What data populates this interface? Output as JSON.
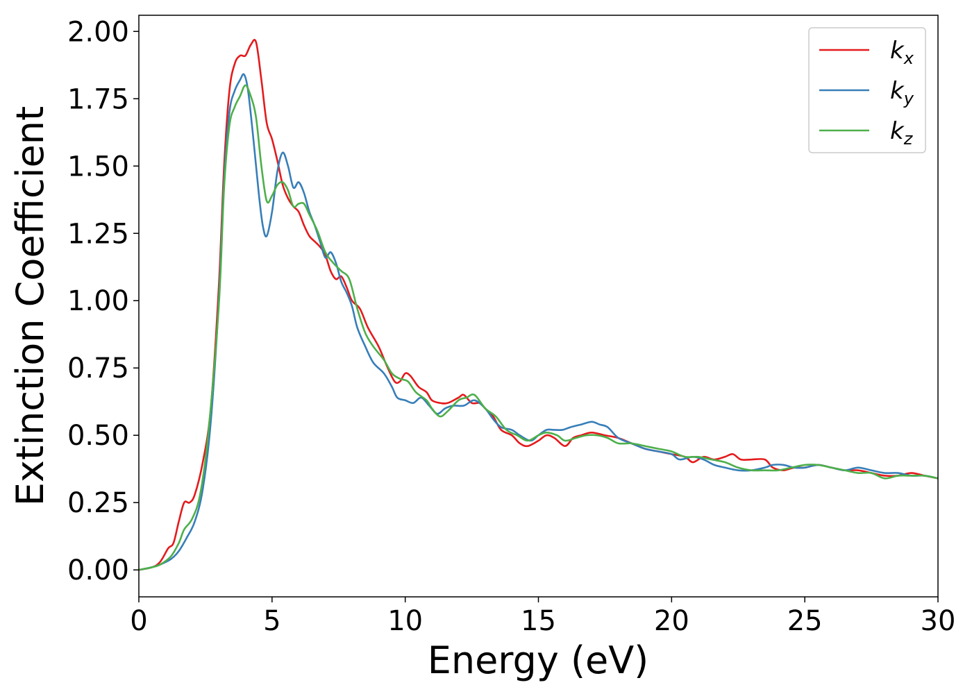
{
  "chart_data": {
    "type": "line",
    "title": "",
    "xlabel": "Energy (eV)",
    "ylabel": "Extinction Coefficient",
    "xlim": [
      0,
      30
    ],
    "ylim": [
      -0.1,
      2.06
    ],
    "x_ticks": [
      0,
      5,
      10,
      15,
      20,
      25,
      30
    ],
    "x_tick_labels": [
      "0",
      "5",
      "10",
      "15",
      "20",
      "25",
      "30"
    ],
    "y_ticks": [
      0,
      0.25,
      0.5,
      0.75,
      1.0,
      1.25,
      1.5,
      1.75,
      2.0
    ],
    "y_tick_labels": [
      "0.00",
      "0.25",
      "0.50",
      "0.75",
      "1.00",
      "1.25",
      "1.50",
      "1.75",
      "2.00"
    ],
    "grid": false,
    "legend_position": "top-right",
    "series": [
      {
        "name": "k",
        "subscript": "x",
        "color": "#e41a1c",
        "points": [
          [
            0,
            0
          ],
          [
            0.5,
            0.01
          ],
          [
            0.8,
            0.03
          ],
          [
            1.1,
            0.08
          ],
          [
            1.3,
            0.1
          ],
          [
            1.5,
            0.18
          ],
          [
            1.7,
            0.25
          ],
          [
            1.9,
            0.25
          ],
          [
            2.1,
            0.28
          ],
          [
            2.4,
            0.4
          ],
          [
            2.7,
            0.6
          ],
          [
            3.0,
            1.05
          ],
          [
            3.2,
            1.5
          ],
          [
            3.4,
            1.78
          ],
          [
            3.6,
            1.88
          ],
          [
            3.8,
            1.91
          ],
          [
            4.0,
            1.91
          ],
          [
            4.2,
            1.95
          ],
          [
            4.4,
            1.96
          ],
          [
            4.6,
            1.82
          ],
          [
            4.8,
            1.66
          ],
          [
            5.0,
            1.6
          ],
          [
            5.2,
            1.52
          ],
          [
            5.4,
            1.43
          ],
          [
            5.6,
            1.38
          ],
          [
            5.8,
            1.35
          ],
          [
            6.0,
            1.33
          ],
          [
            6.2,
            1.28
          ],
          [
            6.4,
            1.24
          ],
          [
            6.6,
            1.22
          ],
          [
            6.8,
            1.2
          ],
          [
            7.0,
            1.17
          ],
          [
            7.2,
            1.11
          ],
          [
            7.4,
            1.08
          ],
          [
            7.6,
            1.09
          ],
          [
            7.8,
            1.05
          ],
          [
            8.0,
            1.0
          ],
          [
            8.3,
            0.97
          ],
          [
            8.6,
            0.9
          ],
          [
            9.0,
            0.83
          ],
          [
            9.3,
            0.76
          ],
          [
            9.6,
            0.7
          ],
          [
            9.8,
            0.7
          ],
          [
            10.0,
            0.73
          ],
          [
            10.2,
            0.72
          ],
          [
            10.5,
            0.68
          ],
          [
            10.8,
            0.66
          ],
          [
            11.0,
            0.63
          ],
          [
            11.3,
            0.62
          ],
          [
            11.6,
            0.62
          ],
          [
            12.0,
            0.64
          ],
          [
            12.2,
            0.65
          ],
          [
            12.5,
            0.62
          ],
          [
            12.8,
            0.62
          ],
          [
            13.0,
            0.6
          ],
          [
            13.3,
            0.57
          ],
          [
            13.6,
            0.52
          ],
          [
            14.0,
            0.5
          ],
          [
            14.3,
            0.47
          ],
          [
            14.6,
            0.46
          ],
          [
            15.0,
            0.48
          ],
          [
            15.3,
            0.5
          ],
          [
            15.6,
            0.49
          ],
          [
            16.0,
            0.46
          ],
          [
            16.3,
            0.49
          ],
          [
            16.6,
            0.5
          ],
          [
            17.0,
            0.51
          ],
          [
            17.5,
            0.5
          ],
          [
            18.0,
            0.49
          ],
          [
            18.5,
            0.47
          ],
          [
            19.0,
            0.45
          ],
          [
            19.5,
            0.44
          ],
          [
            20.0,
            0.43
          ],
          [
            20.5,
            0.42
          ],
          [
            20.8,
            0.4
          ],
          [
            21.2,
            0.42
          ],
          [
            21.6,
            0.41
          ],
          [
            22.0,
            0.42
          ],
          [
            22.3,
            0.43
          ],
          [
            22.6,
            0.41
          ],
          [
            23.0,
            0.41
          ],
          [
            23.5,
            0.41
          ],
          [
            23.8,
            0.38
          ],
          [
            24.2,
            0.37
          ],
          [
            24.6,
            0.38
          ],
          [
            25.0,
            0.38
          ],
          [
            25.5,
            0.39
          ],
          [
            26.0,
            0.38
          ],
          [
            26.5,
            0.37
          ],
          [
            27.0,
            0.37
          ],
          [
            27.5,
            0.36
          ],
          [
            28.0,
            0.35
          ],
          [
            28.5,
            0.35
          ],
          [
            29.0,
            0.36
          ],
          [
            29.5,
            0.35
          ],
          [
            30.0,
            0.34
          ]
        ]
      },
      {
        "name": "k",
        "subscript": "y",
        "color": "#377eb8",
        "points": [
          [
            0,
            0
          ],
          [
            0.5,
            0.01
          ],
          [
            0.8,
            0.02
          ],
          [
            1.2,
            0.04
          ],
          [
            1.5,
            0.07
          ],
          [
            1.8,
            0.12
          ],
          [
            2.1,
            0.18
          ],
          [
            2.4,
            0.3
          ],
          [
            2.7,
            0.55
          ],
          [
            3.0,
            1.0
          ],
          [
            3.2,
            1.45
          ],
          [
            3.4,
            1.7
          ],
          [
            3.6,
            1.78
          ],
          [
            3.8,
            1.82
          ],
          [
            3.95,
            1.84
          ],
          [
            4.1,
            1.78
          ],
          [
            4.3,
            1.6
          ],
          [
            4.5,
            1.4
          ],
          [
            4.65,
            1.28
          ],
          [
            4.8,
            1.24
          ],
          [
            5.0,
            1.33
          ],
          [
            5.2,
            1.48
          ],
          [
            5.4,
            1.55
          ],
          [
            5.6,
            1.5
          ],
          [
            5.8,
            1.42
          ],
          [
            6.0,
            1.44
          ],
          [
            6.2,
            1.4
          ],
          [
            6.4,
            1.33
          ],
          [
            6.6,
            1.28
          ],
          [
            6.8,
            1.22
          ],
          [
            7.0,
            1.16
          ],
          [
            7.2,
            1.18
          ],
          [
            7.4,
            1.14
          ],
          [
            7.6,
            1.07
          ],
          [
            7.8,
            1.03
          ],
          [
            8.0,
            0.98
          ],
          [
            8.2,
            0.9
          ],
          [
            8.5,
            0.83
          ],
          [
            8.8,
            0.77
          ],
          [
            9.2,
            0.73
          ],
          [
            9.5,
            0.68
          ],
          [
            9.7,
            0.64
          ],
          [
            10.0,
            0.63
          ],
          [
            10.3,
            0.62
          ],
          [
            10.6,
            0.64
          ],
          [
            10.9,
            0.61
          ],
          [
            11.2,
            0.58
          ],
          [
            11.5,
            0.6
          ],
          [
            11.8,
            0.61
          ],
          [
            12.2,
            0.61
          ],
          [
            12.6,
            0.63
          ],
          [
            13.0,
            0.6
          ],
          [
            13.3,
            0.56
          ],
          [
            13.6,
            0.53
          ],
          [
            14.0,
            0.52
          ],
          [
            14.3,
            0.5
          ],
          [
            14.7,
            0.48
          ],
          [
            15.0,
            0.5
          ],
          [
            15.3,
            0.52
          ],
          [
            15.6,
            0.52
          ],
          [
            15.9,
            0.52
          ],
          [
            16.2,
            0.53
          ],
          [
            16.6,
            0.54
          ],
          [
            17.0,
            0.55
          ],
          [
            17.3,
            0.54
          ],
          [
            17.6,
            0.53
          ],
          [
            18.0,
            0.49
          ],
          [
            18.5,
            0.47
          ],
          [
            19.0,
            0.45
          ],
          [
            19.5,
            0.44
          ],
          [
            20.0,
            0.43
          ],
          [
            20.3,
            0.41
          ],
          [
            20.8,
            0.42
          ],
          [
            21.2,
            0.41
          ],
          [
            21.6,
            0.39
          ],
          [
            22.0,
            0.38
          ],
          [
            22.5,
            0.37
          ],
          [
            23.0,
            0.37
          ],
          [
            23.5,
            0.38
          ],
          [
            23.8,
            0.39
          ],
          [
            24.2,
            0.39
          ],
          [
            24.6,
            0.38
          ],
          [
            25.0,
            0.38
          ],
          [
            25.5,
            0.39
          ],
          [
            26.0,
            0.38
          ],
          [
            26.5,
            0.37
          ],
          [
            27.0,
            0.38
          ],
          [
            27.5,
            0.37
          ],
          [
            28.0,
            0.36
          ],
          [
            28.5,
            0.36
          ],
          [
            29.0,
            0.35
          ],
          [
            29.5,
            0.35
          ],
          [
            30.0,
            0.34
          ]
        ]
      },
      {
        "name": "k",
        "subscript": "z",
        "color": "#4daf4a",
        "points": [
          [
            0,
            0
          ],
          [
            0.5,
            0.01
          ],
          [
            0.8,
            0.02
          ],
          [
            1.2,
            0.05
          ],
          [
            1.5,
            0.1
          ],
          [
            1.7,
            0.15
          ],
          [
            2.0,
            0.19
          ],
          [
            2.3,
            0.28
          ],
          [
            2.6,
            0.5
          ],
          [
            3.0,
            0.98
          ],
          [
            3.2,
            1.42
          ],
          [
            3.4,
            1.65
          ],
          [
            3.6,
            1.72
          ],
          [
            3.8,
            1.76
          ],
          [
            4.0,
            1.8
          ],
          [
            4.2,
            1.76
          ],
          [
            4.4,
            1.68
          ],
          [
            4.6,
            1.5
          ],
          [
            4.8,
            1.37
          ],
          [
            5.0,
            1.39
          ],
          [
            5.2,
            1.43
          ],
          [
            5.4,
            1.44
          ],
          [
            5.6,
            1.41
          ],
          [
            5.8,
            1.35
          ],
          [
            6.0,
            1.36
          ],
          [
            6.2,
            1.36
          ],
          [
            6.4,
            1.32
          ],
          [
            6.7,
            1.26
          ],
          [
            7.0,
            1.18
          ],
          [
            7.3,
            1.14
          ],
          [
            7.6,
            1.11
          ],
          [
            7.9,
            1.08
          ],
          [
            8.2,
            0.97
          ],
          [
            8.5,
            0.88
          ],
          [
            8.8,
            0.83
          ],
          [
            9.2,
            0.78
          ],
          [
            9.5,
            0.73
          ],
          [
            9.8,
            0.71
          ],
          [
            10.1,
            0.7
          ],
          [
            10.4,
            0.66
          ],
          [
            10.8,
            0.63
          ],
          [
            11.0,
            0.6
          ],
          [
            11.3,
            0.57
          ],
          [
            11.6,
            0.59
          ],
          [
            12.0,
            0.63
          ],
          [
            12.3,
            0.64
          ],
          [
            12.6,
            0.65
          ],
          [
            13.0,
            0.6
          ],
          [
            13.4,
            0.57
          ],
          [
            13.8,
            0.52
          ],
          [
            14.2,
            0.5
          ],
          [
            14.6,
            0.48
          ],
          [
            15.0,
            0.5
          ],
          [
            15.3,
            0.51
          ],
          [
            15.7,
            0.5
          ],
          [
            16.0,
            0.48
          ],
          [
            16.4,
            0.49
          ],
          [
            16.8,
            0.5
          ],
          [
            17.2,
            0.5
          ],
          [
            17.6,
            0.49
          ],
          [
            18.0,
            0.47
          ],
          [
            18.5,
            0.47
          ],
          [
            19.0,
            0.46
          ],
          [
            19.5,
            0.45
          ],
          [
            20.0,
            0.44
          ],
          [
            20.5,
            0.42
          ],
          [
            21.0,
            0.42
          ],
          [
            21.5,
            0.41
          ],
          [
            22.0,
            0.4
          ],
          [
            22.5,
            0.38
          ],
          [
            23.0,
            0.37
          ],
          [
            23.5,
            0.37
          ],
          [
            24.0,
            0.37
          ],
          [
            24.5,
            0.38
          ],
          [
            25.0,
            0.39
          ],
          [
            25.5,
            0.39
          ],
          [
            26.0,
            0.38
          ],
          [
            26.5,
            0.37
          ],
          [
            27.0,
            0.36
          ],
          [
            27.5,
            0.36
          ],
          [
            28.0,
            0.34
          ],
          [
            28.5,
            0.35
          ],
          [
            29.0,
            0.35
          ],
          [
            29.5,
            0.35
          ],
          [
            30.0,
            0.34
          ]
        ]
      }
    ]
  }
}
